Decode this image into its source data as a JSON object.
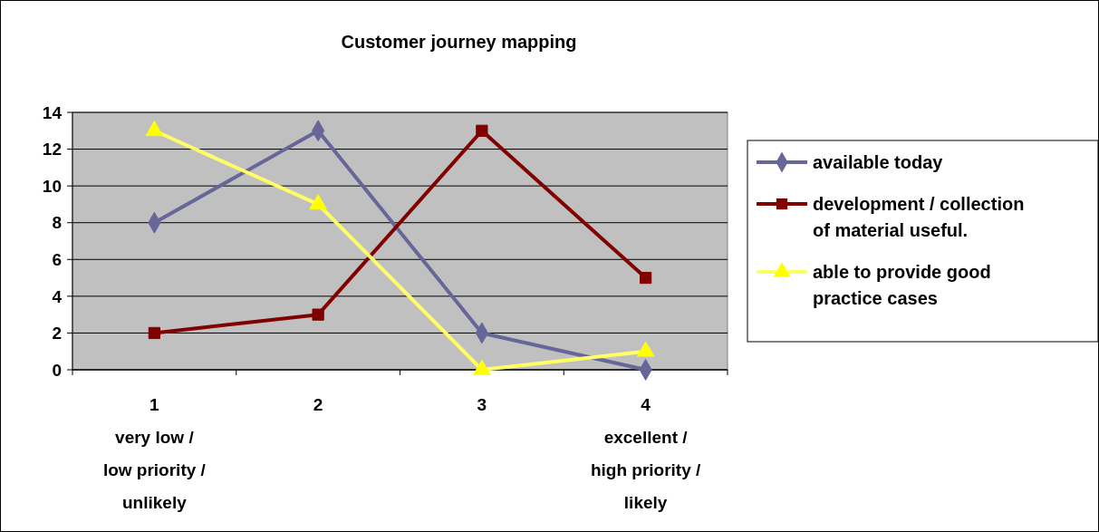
{
  "chart_data": {
    "type": "line",
    "title": "Customer journey mapping",
    "categories": [
      "1\nvery low /\nlow priority /\nunlikely",
      "2",
      "3",
      "4\nexcellent /\nhigh priority /\nlikely"
    ],
    "series": [
      {
        "name": "available today",
        "color": "#666699",
        "marker": "diamond",
        "values": [
          8,
          13,
          2,
          0
        ]
      },
      {
        "name": "development / collection of material useful.",
        "color": "#800000",
        "marker": "square",
        "values": [
          2,
          3,
          13,
          5
        ]
      },
      {
        "name": "able to provide good practice cases",
        "color": "#ffff66",
        "marker": "triangle",
        "values": [
          13,
          9,
          0,
          1
        ]
      }
    ],
    "ylim": [
      0,
      14
    ],
    "yticks": [
      0,
      2,
      4,
      6,
      8,
      10,
      12,
      14
    ],
    "grid": "y",
    "legend": "right",
    "line_style": "solid"
  }
}
